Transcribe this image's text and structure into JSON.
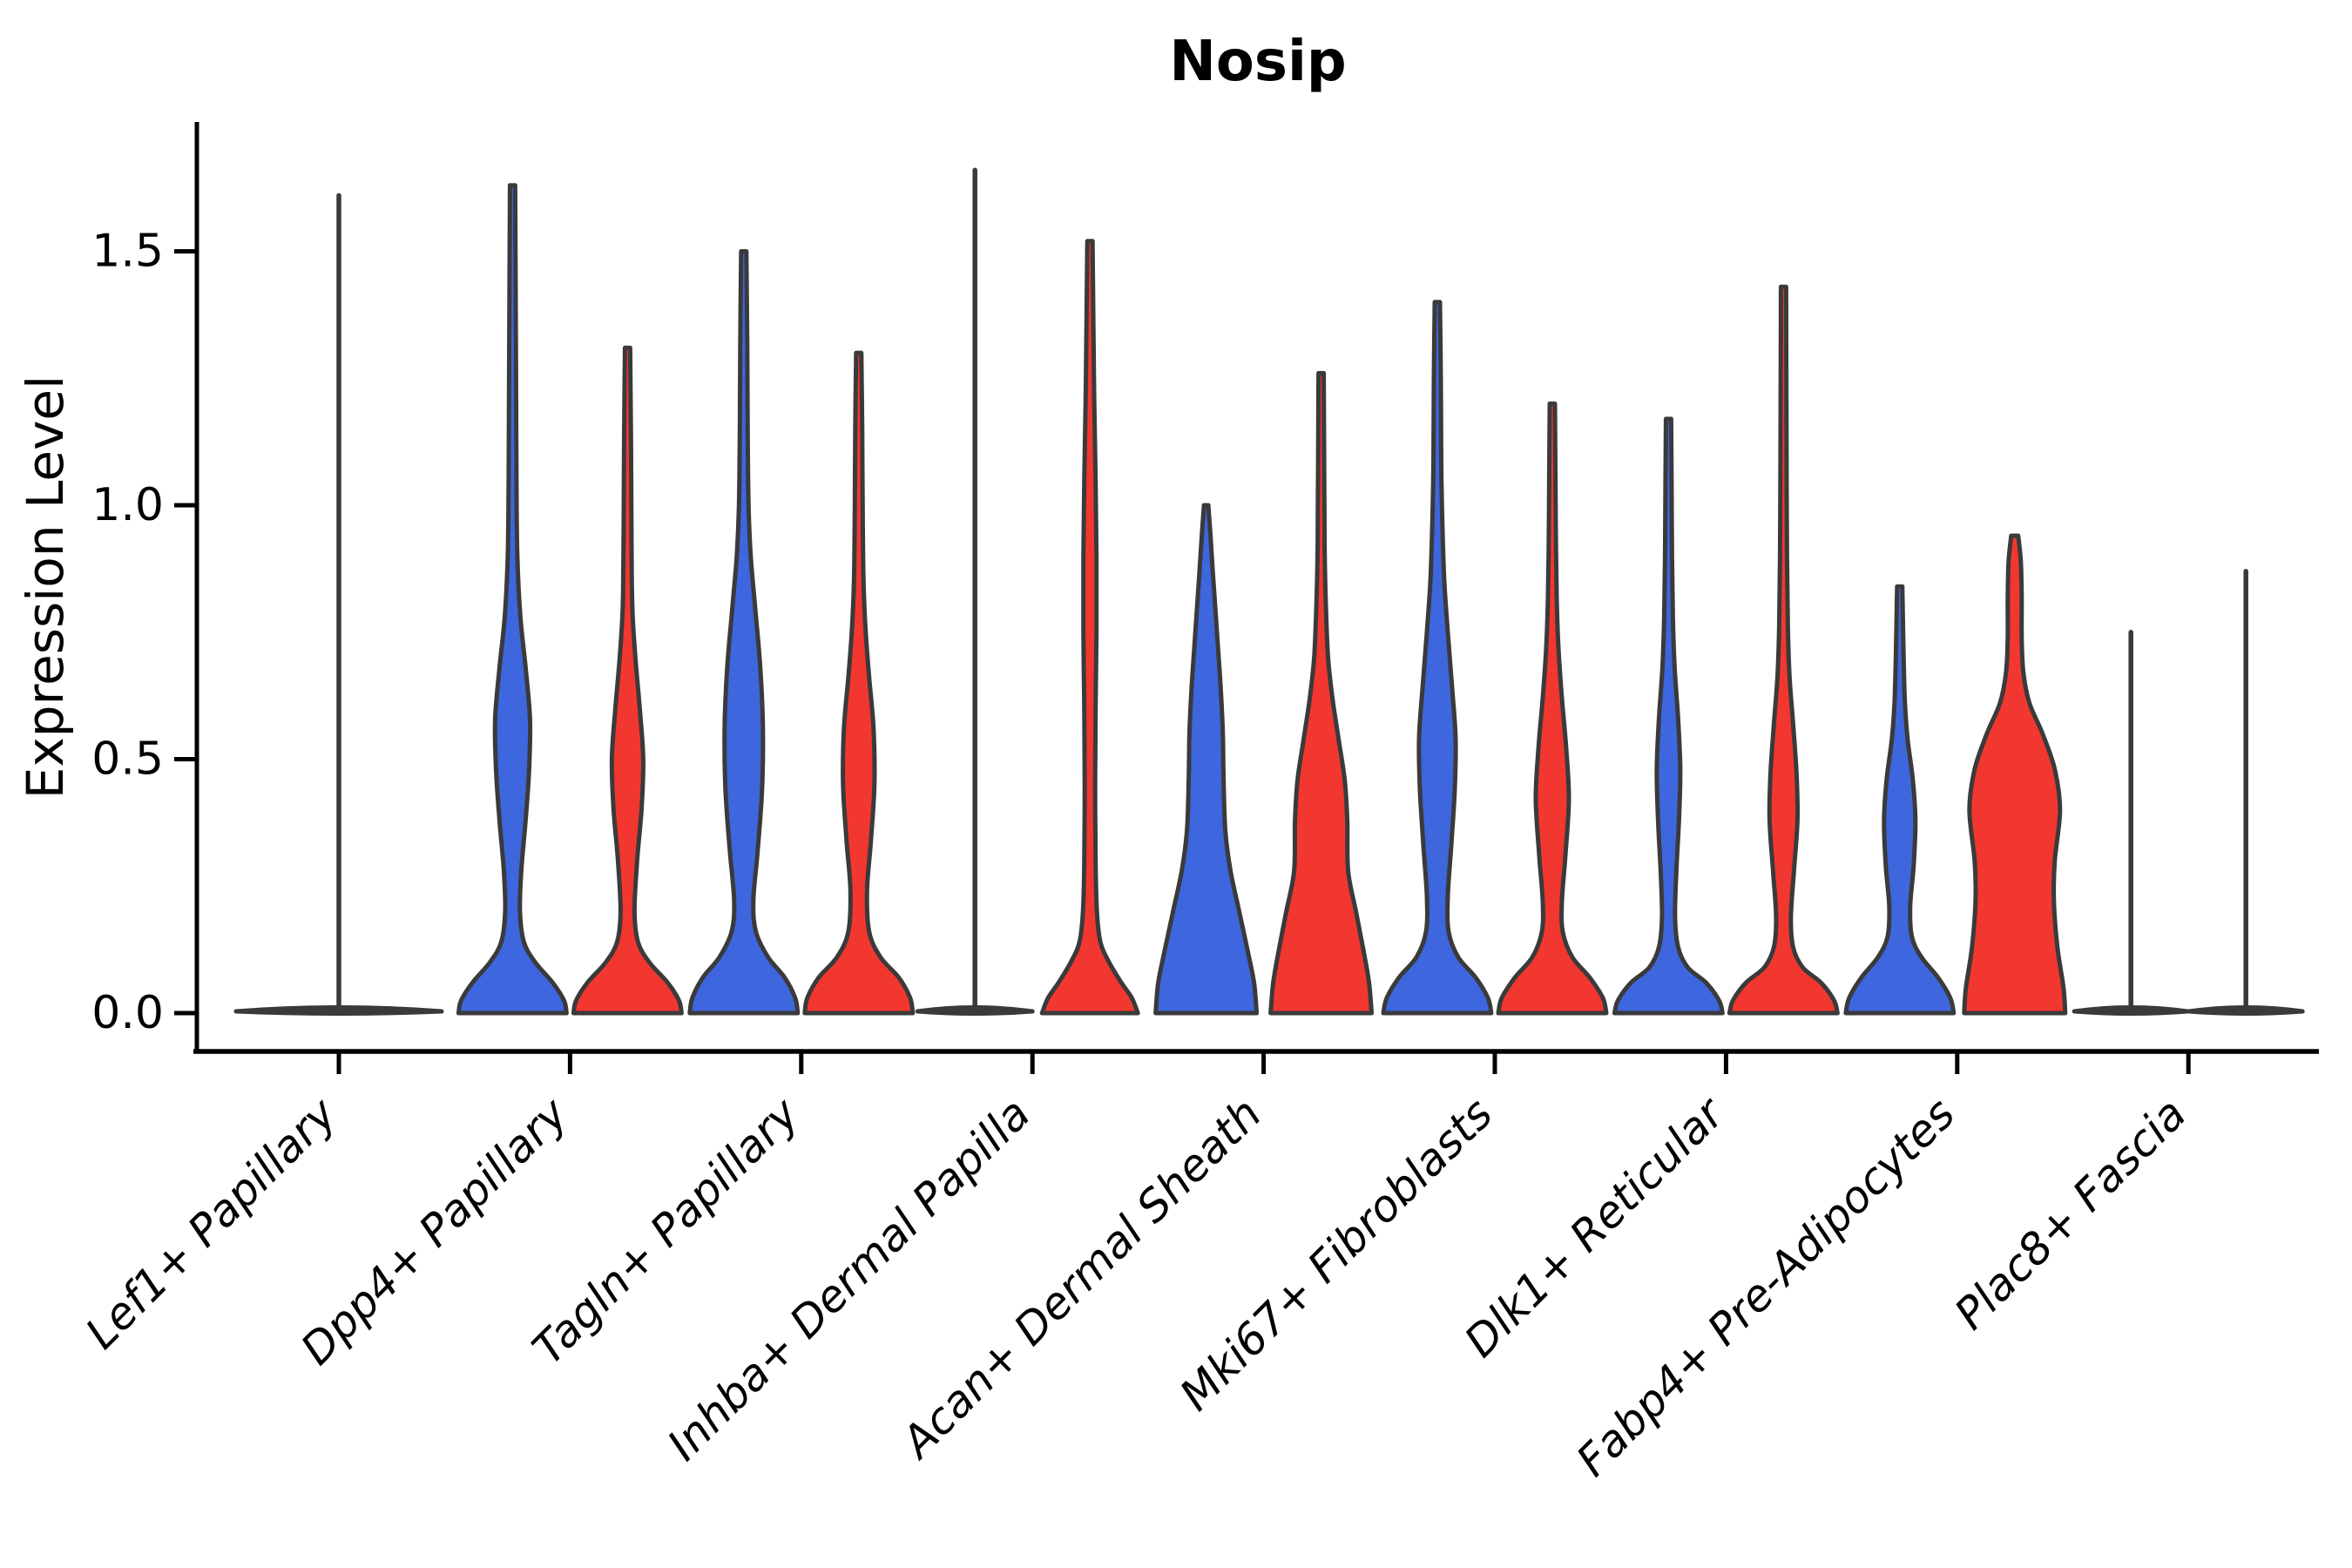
{
  "chart_data": {
    "type": "violin",
    "title": "Nosip",
    "xlabel": "",
    "ylabel": "Expression Level",
    "ylim": [
      -0.06,
      1.78
    ],
    "yticks": [
      0.0,
      0.5,
      1.0,
      1.5
    ],
    "ytick_labels": [
      "0.0",
      "0.5",
      "1.0",
      "1.5"
    ],
    "grid": false,
    "legend_position": "none",
    "categories": [
      "Lef1+ Papillary",
      "Dpp4+ Papillary",
      "Tagln+ Papillary",
      "Inhba+ Dermal Papilla",
      "Acan+ Dermal Sheath",
      "Mki67+ Fibroblasts",
      "Dlk1+ Reticular",
      "Fabp4+ Pre-Adipocytes",
      "Plac8+ Fascia"
    ],
    "groups": [
      {
        "id": "blue",
        "color": "#3E66DE"
      },
      {
        "id": "red",
        "color": "#F23730"
      }
    ],
    "outline_color": "#3a3a3a",
    "axis_color": "#000000",
    "violins": [
      {
        "category": "Lef1+ Papillary",
        "group": "single",
        "side": "center",
        "max": 1.61,
        "flat": true,
        "half_width": 118
      },
      {
        "category": "Dpp4+ Papillary",
        "group": "blue",
        "side": "left",
        "max": 1.63,
        "flat": false,
        "profile": [
          [
            0,
            62
          ],
          [
            0.025,
            59
          ],
          [
            0.06,
            46
          ],
          [
            0.1,
            26
          ],
          [
            0.14,
            13
          ],
          [
            0.2,
            8.5
          ],
          [
            0.28,
            10
          ],
          [
            0.38,
            15
          ],
          [
            0.48,
            19
          ],
          [
            0.58,
            20
          ],
          [
            0.68,
            15
          ],
          [
            0.78,
            9
          ],
          [
            0.9,
            5.5
          ],
          [
            1.05,
            4.5
          ],
          [
            1.25,
            4
          ],
          [
            1.45,
            3.5
          ],
          [
            1.63,
            3
          ]
        ]
      },
      {
        "category": "Dpp4+ Papillary",
        "group": "red",
        "side": "right",
        "max": 1.31,
        "flat": false,
        "profile": [
          [
            0,
            62
          ],
          [
            0.025,
            59
          ],
          [
            0.06,
            46
          ],
          [
            0.1,
            25
          ],
          [
            0.14,
            12
          ],
          [
            0.2,
            8
          ],
          [
            0.3,
            11
          ],
          [
            0.4,
            16
          ],
          [
            0.5,
            18
          ],
          [
            0.6,
            14
          ],
          [
            0.7,
            9
          ],
          [
            0.8,
            5.5
          ],
          [
            0.95,
            4.5
          ],
          [
            1.12,
            4
          ],
          [
            1.31,
            3
          ]
        ]
      },
      {
        "category": "Tagln+ Papillary",
        "group": "blue",
        "side": "left",
        "max": 1.5,
        "flat": false,
        "profile": [
          [
            0,
            62
          ],
          [
            0.03,
            59
          ],
          [
            0.07,
            47
          ],
          [
            0.11,
            28
          ],
          [
            0.16,
            14
          ],
          [
            0.22,
            11
          ],
          [
            0.32,
            16
          ],
          [
            0.44,
            21
          ],
          [
            0.56,
            22
          ],
          [
            0.68,
            19
          ],
          [
            0.8,
            13
          ],
          [
            0.9,
            8
          ],
          [
            1.0,
            5.5
          ],
          [
            1.15,
            4.5
          ],
          [
            1.32,
            4
          ],
          [
            1.5,
            3
          ]
        ]
      },
      {
        "category": "Tagln+ Papillary",
        "group": "red",
        "side": "right",
        "max": 1.3,
        "flat": false,
        "profile": [
          [
            0,
            62
          ],
          [
            0.03,
            59
          ],
          [
            0.07,
            46
          ],
          [
            0.11,
            25
          ],
          [
            0.16,
            12
          ],
          [
            0.24,
            9.5
          ],
          [
            0.34,
            14
          ],
          [
            0.45,
            18
          ],
          [
            0.56,
            17
          ],
          [
            0.66,
            12
          ],
          [
            0.75,
            8
          ],
          [
            0.85,
            5.5
          ],
          [
            1.0,
            4.5
          ],
          [
            1.15,
            4
          ],
          [
            1.3,
            3
          ]
        ]
      },
      {
        "category": "Inhba+ Dermal Papilla",
        "group": "blue",
        "side": "left",
        "max": 1.66,
        "flat": true,
        "half_width": 66
      },
      {
        "category": "Inhba+ Dermal Papilla",
        "group": "red",
        "side": "right",
        "max": 1.52,
        "flat": false,
        "profile": [
          [
            0,
            55
          ],
          [
            0.03,
            48
          ],
          [
            0.06,
            36
          ],
          [
            0.1,
            22
          ],
          [
            0.14,
            12
          ],
          [
            0.2,
            8
          ],
          [
            0.3,
            6.5
          ],
          [
            0.45,
            6
          ],
          [
            0.6,
            6.5
          ],
          [
            0.75,
            7.5
          ],
          [
            0.9,
            7.5
          ],
          [
            1.05,
            6.5
          ],
          [
            1.2,
            5
          ],
          [
            1.35,
            4
          ],
          [
            1.52,
            3
          ]
        ]
      },
      {
        "category": "Acan+ Dermal Sheath",
        "group": "blue",
        "side": "left",
        "max": 1.0,
        "flat": false,
        "profile": [
          [
            0,
            58
          ],
          [
            0.06,
            55
          ],
          [
            0.12,
            48
          ],
          [
            0.2,
            38
          ],
          [
            0.28,
            28
          ],
          [
            0.36,
            22
          ],
          [
            0.46,
            20
          ],
          [
            0.56,
            19
          ],
          [
            0.66,
            16
          ],
          [
            0.76,
            12
          ],
          [
            0.86,
            8
          ],
          [
            0.94,
            5
          ],
          [
            1.0,
            2.5
          ]
        ]
      },
      {
        "category": "Acan+ Dermal Sheath",
        "group": "red",
        "side": "right",
        "max": 1.26,
        "flat": false,
        "profile": [
          [
            0,
            58
          ],
          [
            0.06,
            55
          ],
          [
            0.12,
            49
          ],
          [
            0.2,
            40
          ],
          [
            0.28,
            31
          ],
          [
            0.38,
            30
          ],
          [
            0.46,
            27
          ],
          [
            0.54,
            20
          ],
          [
            0.62,
            13
          ],
          [
            0.7,
            8
          ],
          [
            0.8,
            5.5
          ],
          [
            0.92,
            4
          ],
          [
            1.08,
            3.5
          ],
          [
            1.26,
            3
          ]
        ]
      },
      {
        "category": "Mki67+ Fibroblasts",
        "group": "blue",
        "side": "left",
        "max": 1.4,
        "flat": false,
        "profile": [
          [
            0,
            62
          ],
          [
            0.03,
            58
          ],
          [
            0.07,
            44
          ],
          [
            0.11,
            24
          ],
          [
            0.16,
            13
          ],
          [
            0.23,
            12
          ],
          [
            0.33,
            16
          ],
          [
            0.44,
            20
          ],
          [
            0.54,
            21
          ],
          [
            0.64,
            17
          ],
          [
            0.75,
            12
          ],
          [
            0.85,
            8
          ],
          [
            0.95,
            6
          ],
          [
            1.08,
            4.5
          ],
          [
            1.25,
            4
          ],
          [
            1.4,
            3
          ]
        ]
      },
      {
        "category": "Mki67+ Fibroblasts",
        "group": "red",
        "side": "right",
        "max": 1.2,
        "flat": false,
        "profile": [
          [
            0,
            62
          ],
          [
            0.03,
            58
          ],
          [
            0.07,
            43
          ],
          [
            0.11,
            23
          ],
          [
            0.16,
            12
          ],
          [
            0.22,
            11
          ],
          [
            0.31,
            15
          ],
          [
            0.42,
            19
          ],
          [
            0.52,
            16
          ],
          [
            0.62,
            11
          ],
          [
            0.72,
            7
          ],
          [
            0.82,
            5
          ],
          [
            0.95,
            4
          ],
          [
            1.08,
            3.5
          ],
          [
            1.2,
            3
          ]
        ]
      },
      {
        "category": "Dlk1+ Reticular",
        "group": "blue",
        "side": "left",
        "max": 1.17,
        "flat": false,
        "profile": [
          [
            0,
            62
          ],
          [
            0.025,
            58
          ],
          [
            0.06,
            43
          ],
          [
            0.09,
            22
          ],
          [
            0.13,
            11
          ],
          [
            0.19,
            7.5
          ],
          [
            0.28,
            9
          ],
          [
            0.38,
            12
          ],
          [
            0.48,
            13.5
          ],
          [
            0.58,
            11
          ],
          [
            0.68,
            7
          ],
          [
            0.78,
            5
          ],
          [
            0.9,
            4
          ],
          [
            1.05,
            3.5
          ],
          [
            1.17,
            3
          ]
        ]
      },
      {
        "category": "Dlk1+ Reticular",
        "group": "red",
        "side": "right",
        "max": 1.43,
        "flat": false,
        "profile": [
          [
            0,
            62
          ],
          [
            0.025,
            58
          ],
          [
            0.06,
            43
          ],
          [
            0.09,
            22
          ],
          [
            0.13,
            11
          ],
          [
            0.19,
            8.5
          ],
          [
            0.28,
            12
          ],
          [
            0.38,
            16
          ],
          [
            0.47,
            15
          ],
          [
            0.57,
            11
          ],
          [
            0.66,
            7
          ],
          [
            0.76,
            5
          ],
          [
            0.9,
            4
          ],
          [
            1.1,
            3.5
          ],
          [
            1.28,
            3.2
          ],
          [
            1.43,
            3
          ]
        ]
      },
      {
        "category": "Fabp4+ Pre-Adipocytes",
        "group": "blue",
        "side": "left",
        "max": 0.84,
        "flat": false,
        "profile": [
          [
            0,
            62
          ],
          [
            0.03,
            58
          ],
          [
            0.07,
            44
          ],
          [
            0.11,
            25
          ],
          [
            0.15,
            14
          ],
          [
            0.21,
            12
          ],
          [
            0.29,
            16
          ],
          [
            0.38,
            18
          ],
          [
            0.46,
            15
          ],
          [
            0.54,
            9
          ],
          [
            0.61,
            6
          ],
          [
            0.7,
            4.5
          ],
          [
            0.84,
            3
          ]
        ]
      },
      {
        "category": "Fabp4+ Pre-Adipocytes",
        "group": "red",
        "side": "right",
        "max": 0.94,
        "flat": false,
        "profile": [
          [
            0,
            58
          ],
          [
            0.05,
            56
          ],
          [
            0.13,
            49
          ],
          [
            0.22,
            45
          ],
          [
            0.3,
            46
          ],
          [
            0.4,
            52
          ],
          [
            0.48,
            46
          ],
          [
            0.55,
            32
          ],
          [
            0.61,
            17
          ],
          [
            0.67,
            10
          ],
          [
            0.74,
            8
          ],
          [
            0.82,
            8
          ],
          [
            0.89,
            7
          ],
          [
            0.94,
            4
          ]
        ]
      },
      {
        "category": "Plac8+ Fascia",
        "group": "blue",
        "side": "left",
        "max": 0.75,
        "flat": true,
        "half_width": 65
      },
      {
        "category": "Plac8+ Fascia",
        "group": "red",
        "side": "right",
        "max": 0.87,
        "flat": true,
        "half_width": 65
      }
    ]
  }
}
